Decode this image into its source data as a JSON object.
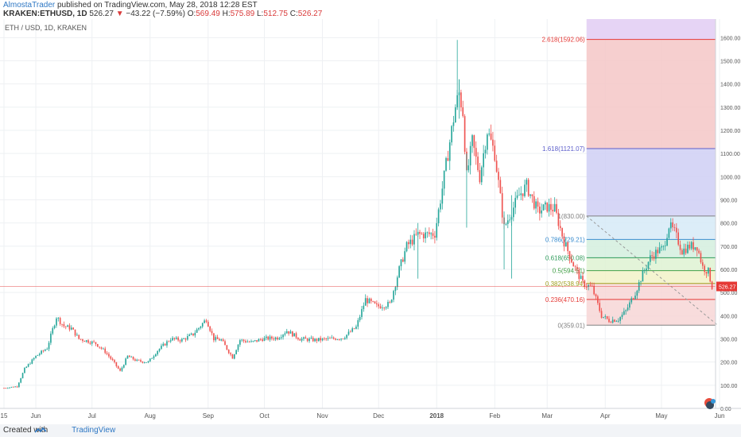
{
  "header": {
    "author": "AlmostaTrader",
    "published": " published on TradingView.com, May 28, 2018 12:28 EST",
    "symbol": "KRAKEN:ETHUSD, 1D",
    "last": "526.27",
    "change": "−43.22 (−7.59%)",
    "o_label": "O:",
    "o": "569.49",
    "h_label": "H:",
    "h": "575.89",
    "l_label": "L:",
    "l": "512.75",
    "c_label": "C:",
    "c": "526.27"
  },
  "footer": {
    "created_with": "Created with",
    "brand": "TradingView"
  },
  "chart_data": {
    "type": "candlestick",
    "title": "ETH / USD, 1D, KRAKEN",
    "y_axis": {
      "min": 0,
      "max": 1680,
      "position": "right",
      "ticks": [
        0,
        100,
        200,
        300,
        400,
        500,
        600,
        700,
        800,
        900,
        1000,
        1100,
        1200,
        1300,
        1400,
        1500,
        1600
      ],
      "tick_labels": [
        "0.00",
        "100.00",
        "200.00",
        "300.00",
        "400.00",
        "500.00",
        "600.00",
        "700.00",
        "800.00",
        "900.00",
        "1000.00",
        "1100.00",
        "1200.00",
        "1300.00",
        "1400.00",
        "1500.00",
        "1600.00"
      ]
    },
    "x_axis": {
      "start": "2017-05-15",
      "end": "2018-06-01",
      "ticks": [
        {
          "date": "2017-05-15",
          "label": "15"
        },
        {
          "date": "2017-06-01",
          "label": "Jun"
        },
        {
          "date": "2017-07-01",
          "label": "Jul"
        },
        {
          "date": "2017-08-01",
          "label": "Aug"
        },
        {
          "date": "2017-09-01",
          "label": "Sep"
        },
        {
          "date": "2017-10-01",
          "label": "Oct"
        },
        {
          "date": "2017-11-01",
          "label": "Nov"
        },
        {
          "date": "2017-12-01",
          "label": "Dec"
        },
        {
          "date": "2018-01-01",
          "label": "2018"
        },
        {
          "date": "2018-02-01",
          "label": "Feb"
        },
        {
          "date": "2018-03-01",
          "label": "Mar"
        },
        {
          "date": "2018-04-01",
          "label": "Apr"
        },
        {
          "date": "2018-05-01",
          "label": "May"
        },
        {
          "date": "2018-06-01",
          "label": "Jun"
        }
      ]
    },
    "grid": true,
    "current_price": {
      "value": 526.27,
      "label": "526.27",
      "color": "#e53935"
    },
    "up_color": "#26a69a",
    "down_color": "#ef5350",
    "price_path": [
      [
        "2017-05-15",
        88
      ],
      [
        "2017-05-22",
        95
      ],
      [
        "2017-05-26",
        170
      ],
      [
        "2017-06-01",
        225
      ],
      [
        "2017-06-07",
        260
      ],
      [
        "2017-06-12",
        395
      ],
      [
        "2017-06-16",
        355
      ],
      [
        "2017-06-20",
        345
      ],
      [
        "2017-06-24",
        300
      ],
      [
        "2017-06-29",
        290
      ],
      [
        "2017-07-03",
        280
      ],
      [
        "2017-07-08",
        245
      ],
      [
        "2017-07-12",
        205
      ],
      [
        "2017-07-16",
        160
      ],
      [
        "2017-07-20",
        225
      ],
      [
        "2017-07-25",
        205
      ],
      [
        "2017-07-31",
        200
      ],
      [
        "2017-08-05",
        250
      ],
      [
        "2017-08-12",
        300
      ],
      [
        "2017-08-18",
        295
      ],
      [
        "2017-08-24",
        320
      ],
      [
        "2017-08-31",
        385
      ],
      [
        "2017-09-04",
        300
      ],
      [
        "2017-09-08",
        295
      ],
      [
        "2017-09-14",
        220
      ],
      [
        "2017-09-18",
        295
      ],
      [
        "2017-09-24",
        285
      ],
      [
        "2017-09-30",
        300
      ],
      [
        "2017-10-08",
        305
      ],
      [
        "2017-10-13",
        335
      ],
      [
        "2017-10-20",
        300
      ],
      [
        "2017-10-28",
        295
      ],
      [
        "2017-11-05",
        300
      ],
      [
        "2017-11-12",
        305
      ],
      [
        "2017-11-19",
        350
      ],
      [
        "2017-11-24",
        470
      ],
      [
        "2017-11-30",
        440
      ],
      [
        "2017-12-07",
        450
      ],
      [
        "2017-12-12",
        600
      ],
      [
        "2017-12-16",
        700
      ],
      [
        "2017-12-22",
        750
      ],
      [
        "2017-12-26",
        750
      ],
      [
        "2017-12-31",
        755
      ],
      [
        "2018-01-04",
        950
      ],
      [
        "2018-01-08",
        1150
      ],
      [
        "2018-01-11",
        1300
      ],
      [
        "2018-01-13",
        1360
      ],
      [
        "2018-01-15",
        1280
      ],
      [
        "2018-01-17",
        1000
      ],
      [
        "2018-01-20",
        1150
      ],
      [
        "2018-01-24",
        1000
      ],
      [
        "2018-01-28",
        1200
      ],
      [
        "2018-02-01",
        1100
      ],
      [
        "2018-02-06",
        780
      ],
      [
        "2018-02-10",
        850
      ],
      [
        "2018-02-14",
        920
      ],
      [
        "2018-02-18",
        960
      ],
      [
        "2018-02-24",
        850
      ],
      [
        "2018-03-01",
        870
      ],
      [
        "2018-03-05",
        860
      ],
      [
        "2018-03-10",
        720
      ],
      [
        "2018-03-15",
        620
      ],
      [
        "2018-03-20",
        540
      ],
      [
        "2018-03-25",
        520
      ],
      [
        "2018-03-30",
        400
      ],
      [
        "2018-04-03",
        380
      ],
      [
        "2018-04-08",
        385
      ],
      [
        "2018-04-12",
        420
      ],
      [
        "2018-04-17",
        500
      ],
      [
        "2018-04-21",
        580
      ],
      [
        "2018-04-25",
        650
      ],
      [
        "2018-04-29",
        680
      ],
      [
        "2018-05-02",
        690
      ],
      [
        "2018-05-05",
        790
      ],
      [
        "2018-05-08",
        760
      ],
      [
        "2018-05-12",
        680
      ],
      [
        "2018-05-16",
        700
      ],
      [
        "2018-05-20",
        700
      ],
      [
        "2018-05-23",
        610
      ],
      [
        "2018-05-26",
        590
      ],
      [
        "2018-05-28",
        526
      ]
    ],
    "wick_spikes": [
      {
        "date": "2018-01-13",
        "high": 1420,
        "low": 1300
      },
      {
        "date": "2018-01-13",
        "high": 1420,
        "low": 1250
      },
      {
        "date": "2018-01-12",
        "high": 1590,
        "low": 1290
      },
      {
        "date": "2017-12-22",
        "high": 800,
        "low": 560
      },
      {
        "date": "2018-01-17",
        "high": 1100,
        "low": 780
      },
      {
        "date": "2018-02-06",
        "high": 850,
        "low": 600
      },
      {
        "date": "2018-02-10",
        "high": 920,
        "low": 560
      }
    ],
    "fibonacci": {
      "start_date": "2018-03-22",
      "end_date": "2018-06-01",
      "trend_line": {
        "from": [
          "2018-03-22",
          830
        ],
        "to": [
          "2018-05-31",
          359
        ]
      },
      "levels": [
        {
          "ratio": 2.618,
          "value": 1592.06,
          "label": "2.618(1592.06)",
          "color": "#e53935",
          "fill": "#f4c7c7"
        },
        {
          "ratio": 1.618,
          "value": 1121.07,
          "label": "1.618(1121.07)",
          "color": "#5d5fcb",
          "fill": "#cfcff4"
        },
        {
          "ratio": 1.0,
          "value": 830.0,
          "label": "1(830.00)",
          "color": "#808080",
          "fill": "#e6e6e6"
        },
        {
          "ratio": 0.786,
          "value": 729.21,
          "label": "0.786(729.21)",
          "color": "#3a8dcf",
          "fill": "#d6eaf7"
        },
        {
          "ratio": 0.618,
          "value": 650.08,
          "label": "0.618(650.08)",
          "color": "#2e9b5a",
          "fill": "#d3efde"
        },
        {
          "ratio": 0.5,
          "value": 594.51,
          "label": "0.5(594.51)",
          "color": "#43a047",
          "fill": "#def2d2"
        },
        {
          "ratio": 0.382,
          "value": 538.94,
          "label": "0.382(538.94)",
          "color": "#a0a020",
          "fill": "#f2f2c8"
        },
        {
          "ratio": 0.236,
          "value": 470.16,
          "label": "0.236(470.16)",
          "color": "#e53935",
          "fill": "#f7d6d6"
        },
        {
          "ratio": 0,
          "value": 359.01,
          "label": "0(359.01)",
          "color": "#808080",
          "fill": null
        }
      ],
      "top_band": {
        "top": 1680,
        "fill": "#e6d4f5"
      }
    }
  }
}
